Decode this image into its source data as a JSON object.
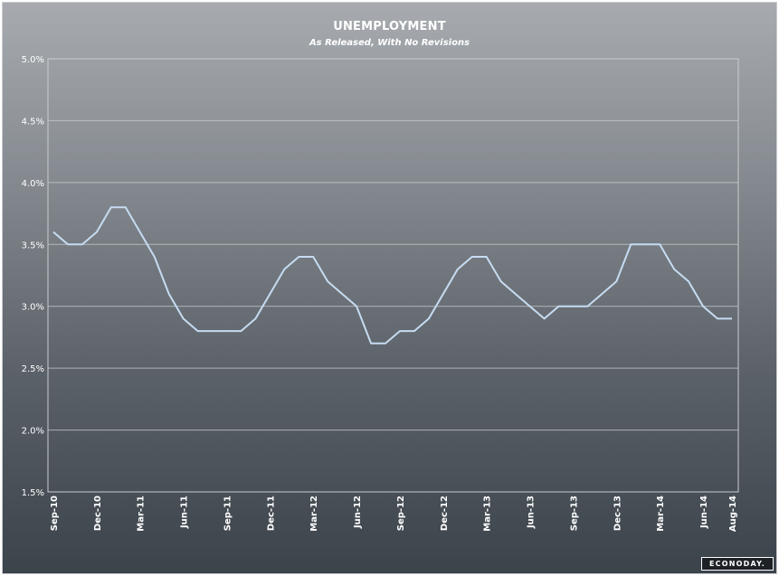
{
  "chart_data": {
    "type": "line",
    "title": "UNEMPLOYMENT",
    "subtitle": "As Released, With No Revisions",
    "xlabel": "",
    "ylabel": "",
    "ylim": [
      1.5,
      5.0
    ],
    "yticks": [
      "1.5%",
      "2.0%",
      "2.5%",
      "3.0%",
      "3.5%",
      "4.0%",
      "4.5%",
      "5.0%"
    ],
    "ytick_values": [
      1.5,
      2.0,
      2.5,
      3.0,
      3.5,
      4.0,
      4.5,
      5.0
    ],
    "grid": true,
    "legend": "none",
    "line_color": "#c6dcf2",
    "x": [
      "Sep-10",
      "Oct-10",
      "Nov-10",
      "Dec-10",
      "Jan-11",
      "Feb-11",
      "Mar-11",
      "Apr-11",
      "May-11",
      "Jun-11",
      "Jul-11",
      "Aug-11",
      "Sep-11",
      "Oct-11",
      "Nov-11",
      "Dec-11",
      "Jan-12",
      "Feb-12",
      "Mar-12",
      "Apr-12",
      "May-12",
      "Jun-12",
      "Jul-12",
      "Aug-12",
      "Sep-12",
      "Oct-12",
      "Nov-12",
      "Dec-12",
      "Jan-13",
      "Feb-13",
      "Mar-13",
      "Apr-13",
      "May-13",
      "Jun-13",
      "Jul-13",
      "Aug-13",
      "Sep-13",
      "Oct-13",
      "Nov-13",
      "Dec-13",
      "Jan-14",
      "Feb-14",
      "Mar-14",
      "Apr-14",
      "May-14",
      "Jun-14",
      "Jul-14",
      "Aug-14"
    ],
    "xtick_labels": [
      "Sep-10",
      "Dec-10",
      "Mar-11",
      "Jun-11",
      "Sep-11",
      "Dec-11",
      "Mar-12",
      "Jun-12",
      "Sep-12",
      "Dec-12",
      "Mar-13",
      "Jun-13",
      "Sep-13",
      "Dec-13",
      "Mar-14",
      "Jun-14",
      "Aug-14"
    ],
    "series": [
      {
        "values": [
          3.6,
          3.5,
          3.5,
          3.6,
          3.8,
          3.8,
          3.6,
          3.4,
          3.1,
          2.9,
          2.8,
          2.8,
          2.8,
          2.8,
          2.9,
          3.1,
          3.3,
          3.4,
          3.4,
          3.2,
          3.1,
          3.0,
          2.7,
          2.7,
          2.8,
          2.8,
          2.9,
          3.1,
          3.3,
          3.4,
          3.4,
          3.2,
          3.1,
          3.0,
          2.9,
          3.0,
          3.0,
          3.0,
          3.1,
          3.2,
          3.5,
          3.5,
          3.5,
          3.3,
          3.2,
          3.0,
          2.9,
          2.9
        ]
      }
    ]
  },
  "branding": {
    "logo_text": "ECONODAY."
  }
}
